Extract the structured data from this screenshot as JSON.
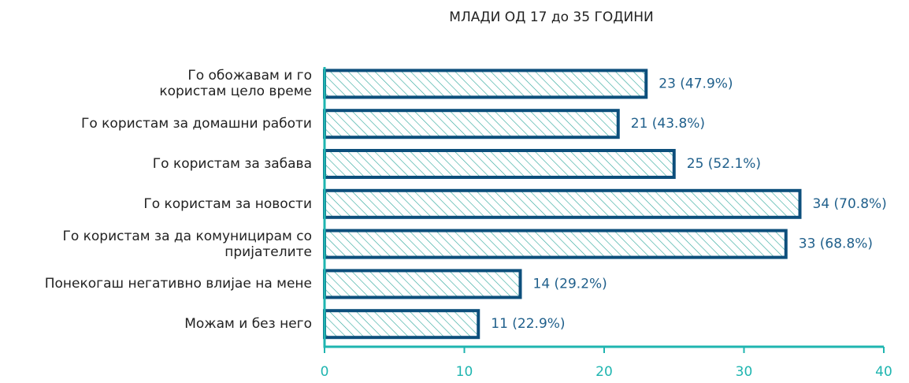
{
  "chart_data": {
    "type": "bar",
    "orientation": "horizontal",
    "title": "МЛАДИ ОД 17 до 35 ГОДИНИ",
    "categories": [
      "Го обожавам и го\nкористам цело време",
      "Го користам за домашни работи",
      "Го користам за забава",
      "Го користам за новости",
      "Го користам за да комуницирам со\nпријателите",
      "Понекогаш негативно влијае на мене",
      "Можам и без него"
    ],
    "values": [
      23,
      21,
      25,
      34,
      33,
      14,
      11
    ],
    "value_labels": [
      "23 (47.9%)",
      "21 (43.8%)",
      "25 (52.1%)",
      "34 (70.8%)",
      "33 (68.8%)",
      "14 (29.2%)",
      "11 (22.9%)"
    ],
    "color": "#0d4f7c",
    "hatch_color": "#2aa59a",
    "axis_color": "#1fb5b0",
    "label_color": "#1f5f8b",
    "xlim": [
      0,
      40
    ],
    "xticks": [
      0,
      10,
      20,
      30,
      40
    ]
  }
}
